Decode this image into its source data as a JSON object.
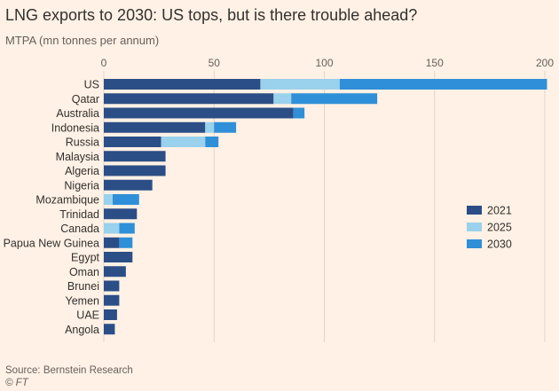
{
  "chart_data": {
    "type": "bar",
    "orientation": "horizontal",
    "stacked": true,
    "title": "LNG exports to 2030: US tops, but is there trouble ahead?",
    "subtitle": "MTPA (mn tonnes per annum)",
    "xlim": [
      0,
      200
    ],
    "xticks": [
      0,
      50,
      100,
      150,
      200
    ],
    "grid": true,
    "legend_position": "right",
    "categories": [
      "US",
      "Qatar",
      "Australia",
      "Indonesia",
      "Russia",
      "Malaysia",
      "Algeria",
      "Nigeria",
      "Mozambique",
      "Trinidad",
      "Canada",
      "Papua New Guinea",
      "Egypt",
      "Oman",
      "Brunei",
      "Yemen",
      "UAE",
      "Angola"
    ],
    "series": [
      {
        "name": "2021",
        "color": "#2b4e86",
        "values": [
          71,
          77,
          86,
          46,
          26,
          28,
          28,
          22,
          0,
          15,
          0,
          7,
          13,
          10,
          7,
          7,
          6,
          5
        ]
      },
      {
        "name": "2025",
        "color": "#9ad1ec",
        "values": [
          36,
          8,
          0,
          4,
          20,
          0,
          0,
          0,
          4,
          0,
          7,
          0,
          0,
          0,
          0,
          0,
          0,
          0
        ]
      },
      {
        "name": "2030",
        "color": "#2f8fd8",
        "values": [
          94,
          39,
          5,
          10,
          6,
          0,
          0,
          0,
          12,
          0,
          7,
          6,
          0,
          0,
          0,
          0,
          0,
          0
        ]
      }
    ],
    "source": "Source: Bernstein Research",
    "copyright": "© FT"
  }
}
